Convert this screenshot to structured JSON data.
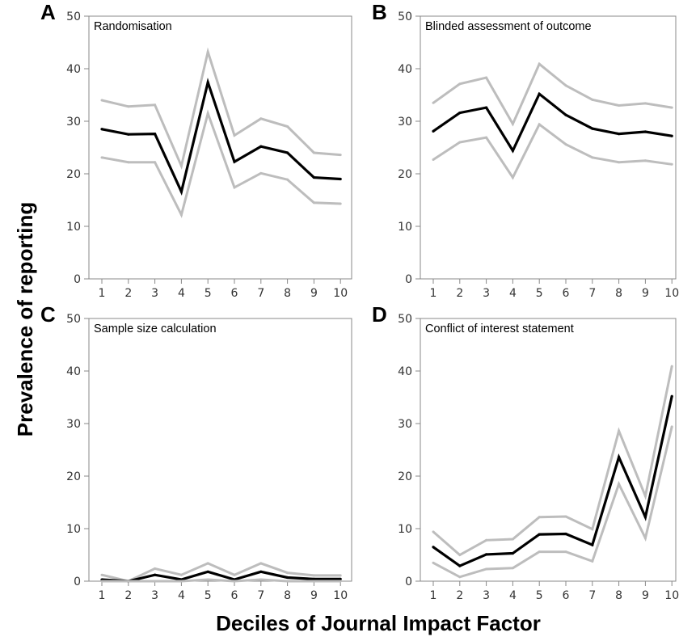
{
  "figure": {
    "ylabel": "Prevalence of reporting",
    "xlabel": "Deciles of Journal Impact Factor"
  },
  "colors": {
    "estimate": "#000000",
    "ci": "#bdbdbd",
    "frame": "#888888"
  },
  "chart_data": [
    {
      "panel": "A",
      "type": "line",
      "title": "Randomisation",
      "x": [
        1,
        2,
        3,
        4,
        5,
        6,
        7,
        8,
        9,
        10
      ],
      "ylim": [
        0,
        50
      ],
      "yticks": [
        0,
        10,
        20,
        30,
        40,
        50
      ],
      "series": [
        {
          "role": "upper",
          "values": [
            34,
            32.8,
            33.1,
            21.5,
            43.2,
            27.3,
            30.5,
            29,
            24,
            23.6
          ]
        },
        {
          "role": "estimate",
          "values": [
            28.5,
            27.5,
            27.6,
            16.6,
            37.4,
            22.3,
            25.2,
            24,
            19.3,
            19
          ]
        },
        {
          "role": "lower",
          "values": [
            23.1,
            22.2,
            22.2,
            12.2,
            31.5,
            17.4,
            20.1,
            18.9,
            14.5,
            14.3
          ]
        }
      ]
    },
    {
      "panel": "B",
      "type": "line",
      "title": "Blinded assessment of outcome",
      "x": [
        1,
        2,
        3,
        4,
        5,
        6,
        7,
        8,
        9,
        10
      ],
      "ylim": [
        0,
        50
      ],
      "yticks": [
        0,
        10,
        20,
        30,
        40,
        50
      ],
      "series": [
        {
          "role": "upper",
          "values": [
            33.5,
            37.1,
            38.3,
            29.5,
            40.9,
            36.8,
            34.1,
            33,
            33.4,
            32.6
          ]
        },
        {
          "role": "estimate",
          "values": [
            28.1,
            31.6,
            32.6,
            24.4,
            35.2,
            31.2,
            28.6,
            27.6,
            28,
            27.2
          ]
        },
        {
          "role": "lower",
          "values": [
            22.7,
            26,
            26.9,
            19.3,
            29.4,
            25.6,
            23.1,
            22.2,
            22.5,
            21.8
          ]
        }
      ]
    },
    {
      "panel": "C",
      "type": "line",
      "title": "Sample size calculation",
      "x": [
        1,
        2,
        3,
        4,
        5,
        6,
        7,
        8,
        9,
        10
      ],
      "ylim": [
        0,
        50
      ],
      "yticks": [
        0,
        10,
        20,
        30,
        40,
        50
      ],
      "series": [
        {
          "role": "upper",
          "values": [
            1.2,
            0,
            2.4,
            1.2,
            3.4,
            1.2,
            3.4,
            1.6,
            1.1,
            1.1
          ]
        },
        {
          "role": "estimate",
          "values": [
            0.3,
            0,
            1.2,
            0.3,
            1.8,
            0.3,
            1.8,
            0.7,
            0.4,
            0.4
          ]
        },
        {
          "role": "lower",
          "values": [
            0,
            0,
            0,
            0,
            0.3,
            0,
            0.3,
            0,
            0,
            0
          ]
        }
      ]
    },
    {
      "panel": "D",
      "type": "line",
      "title": "Conflict of interest statement",
      "x": [
        1,
        2,
        3,
        4,
        5,
        6,
        7,
        8,
        9,
        10
      ],
      "ylim": [
        0,
        50
      ],
      "yticks": [
        0,
        10,
        20,
        30,
        40,
        50
      ],
      "series": [
        {
          "role": "upper",
          "values": [
            9.4,
            5,
            7.8,
            8,
            12.2,
            12.3,
            9.9,
            28.6,
            16.2,
            40.9
          ]
        },
        {
          "role": "estimate",
          "values": [
            6.5,
            2.9,
            5.1,
            5.3,
            8.9,
            9,
            6.9,
            23.6,
            12.2,
            35.2
          ]
        },
        {
          "role": "lower",
          "values": [
            3.5,
            0.8,
            2.3,
            2.5,
            5.6,
            5.6,
            3.8,
            18.5,
            8.2,
            29.4
          ]
        }
      ]
    }
  ]
}
